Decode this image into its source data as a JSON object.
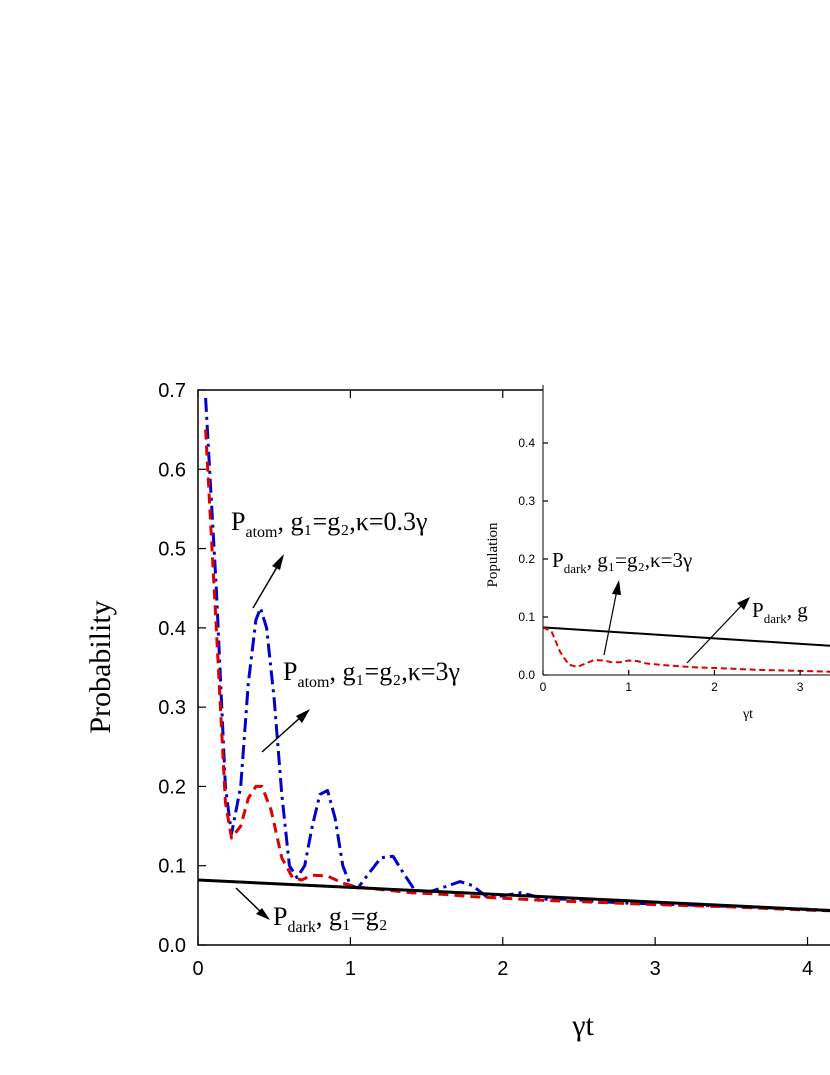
{
  "chart_data": [
    {
      "type": "line",
      "xlabel": "γt",
      "ylabel": "Probability",
      "xlim": [
        0,
        4.2
      ],
      "ylim": [
        0,
        0.7
      ],
      "xticks": [
        "0",
        "1",
        "2",
        "3",
        "4"
      ],
      "yticks": [
        "0.0",
        "0.1",
        "0.2",
        "0.3",
        "0.4",
        "0.5",
        "0.6",
        "0.7"
      ],
      "series": [
        {
          "style": "dash-dot",
          "color": "#0000cc",
          "x": [
            0.05,
            0.12,
            0.18,
            0.22,
            0.28,
            0.33,
            0.38,
            0.41,
            0.45,
            0.5,
            0.55,
            0.6,
            0.65,
            0.7,
            0.75,
            0.8,
            0.85,
            0.9,
            0.95,
            1.0,
            1.05,
            1.12,
            1.2,
            1.28,
            1.35,
            1.42,
            1.5,
            1.6,
            1.72,
            1.8,
            1.9,
            2.0,
            2.12,
            2.2,
            2.3,
            2.4,
            2.5,
            2.6,
            2.8,
            3.0,
            3.3,
            3.6,
            4.0,
            4.2
          ],
          "y": [
            0.69,
            0.45,
            0.2,
            0.14,
            0.2,
            0.33,
            0.41,
            0.425,
            0.4,
            0.31,
            0.19,
            0.1,
            0.085,
            0.1,
            0.15,
            0.19,
            0.195,
            0.16,
            0.1,
            0.075,
            0.072,
            0.09,
            0.11,
            0.112,
            0.09,
            0.07,
            0.066,
            0.072,
            0.08,
            0.075,
            0.06,
            0.062,
            0.066,
            0.062,
            0.057,
            0.058,
            0.057,
            0.055,
            0.053,
            0.052,
            0.05,
            0.048,
            0.045,
            0.043
          ]
        },
        {
          "style": "dashed",
          "color": "#dd0000",
          "x": [
            0.05,
            0.12,
            0.18,
            0.22,
            0.28,
            0.33,
            0.38,
            0.42,
            0.48,
            0.55,
            0.62,
            0.68,
            0.75,
            0.85,
            0.95,
            1.05,
            1.2,
            1.4,
            1.6,
            1.8,
            2.0,
            2.3,
            2.6,
            3.0,
            3.5,
            4.0,
            4.2
          ],
          "y": [
            0.65,
            0.4,
            0.18,
            0.135,
            0.15,
            0.185,
            0.2,
            0.2,
            0.17,
            0.11,
            0.085,
            0.082,
            0.088,
            0.087,
            0.078,
            0.073,
            0.07,
            0.066,
            0.064,
            0.061,
            0.059,
            0.056,
            0.054,
            0.051,
            0.048,
            0.044,
            0.043
          ]
        },
        {
          "style": "solid",
          "color": "#000000",
          "x": [
            0,
            4.2
          ],
          "y": [
            0.082,
            0.043
          ]
        }
      ],
      "annotations": [
        {
          "base": "P",
          "sub": "atom",
          "rest": ", g₁=g₂,κ=0.3γ"
        },
        {
          "base": "P",
          "sub": "atom",
          "rest": ", g₁=g₂,κ=3γ"
        },
        {
          "base": "P",
          "sub": "dark",
          "rest": ", g₁=g₂"
        }
      ]
    },
    {
      "type": "line",
      "xlabel": "γt",
      "ylabel": "Population",
      "xlim": [
        0,
        3.5
      ],
      "ylim": [
        0,
        0.5
      ],
      "xticks": [
        "0",
        "1",
        "2",
        "3"
      ],
      "yticks": [
        "0.0",
        "0.1",
        "0.2",
        "0.3",
        "0.4"
      ],
      "series": [
        {
          "style": "solid",
          "color": "#000000",
          "x": [
            0,
            3.5
          ],
          "y": [
            0.082,
            0.049
          ]
        },
        {
          "style": "dashed",
          "color": "#dd0000",
          "x": [
            0,
            0.1,
            0.2,
            0.3,
            0.4,
            0.5,
            0.6,
            0.7,
            0.8,
            0.9,
            1.0,
            1.1,
            1.2,
            1.4,
            1.6,
            1.8,
            2.0,
            2.5,
            3.0,
            3.5
          ],
          "y": [
            0.082,
            0.075,
            0.04,
            0.018,
            0.014,
            0.02,
            0.026,
            0.025,
            0.022,
            0.022,
            0.025,
            0.024,
            0.02,
            0.017,
            0.015,
            0.013,
            0.012,
            0.009,
            0.007,
            0.005
          ]
        }
      ],
      "annotations": [
        {
          "base": "P",
          "sub": "dark",
          "rest": ", g₁=g₂,κ=3γ"
        },
        {
          "base": "P",
          "sub": "dark",
          "rest": ", g"
        }
      ]
    }
  ]
}
